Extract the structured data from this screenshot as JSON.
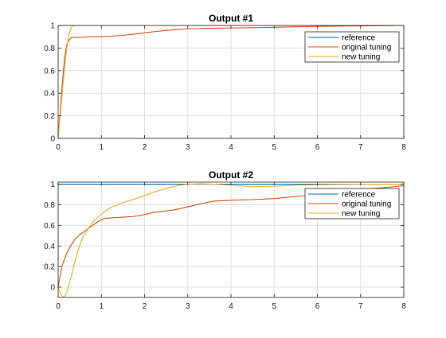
{
  "chart_data": [
    {
      "type": "line",
      "title": "Output #1",
      "xlim": [
        0,
        8
      ],
      "ylim": [
        0,
        1
      ],
      "xticks": [
        "0",
        "1",
        "2",
        "3",
        "4",
        "5",
        "6",
        "7",
        "8"
      ],
      "yticks": [
        "0",
        "0.2",
        "0.4",
        "0.6",
        "0.8",
        "1"
      ],
      "grid": true,
      "legend_position": "top-right",
      "series": [
        {
          "name": "reference",
          "color": "#0072BD",
          "x": [
            0,
            8
          ],
          "y": [
            1,
            1
          ]
        },
        {
          "name": "original tuning",
          "color": "#D95319",
          "x": [
            0,
            0.05,
            0.1,
            0.15,
            0.2,
            0.25,
            0.3,
            0.35,
            0.45,
            0.6,
            0.8,
            1.0,
            1.2,
            1.5,
            1.8,
            2.0,
            2.3,
            2.6,
            3.0,
            3.5,
            4.0,
            4.5,
            5.0,
            5.5,
            6.0,
            6.5,
            7.0,
            7.5,
            8.0
          ],
          "y": [
            0.01,
            0.25,
            0.5,
            0.72,
            0.83,
            0.87,
            0.89,
            0.895,
            0.895,
            0.897,
            0.9,
            0.902,
            0.905,
            0.912,
            0.925,
            0.935,
            0.948,
            0.96,
            0.97,
            0.975,
            0.978,
            0.98,
            0.984,
            0.988,
            0.992,
            0.994,
            0.996,
            0.998,
            1.0
          ]
        },
        {
          "name": "new tuning",
          "color": "#EDB120",
          "x": [
            0,
            0.05,
            0.1,
            0.15,
            0.2,
            0.25,
            0.3,
            0.35,
            0.4,
            0.5,
            0.7,
            1.0,
            8.0
          ],
          "y": [
            0.0,
            0.2,
            0.42,
            0.62,
            0.8,
            0.92,
            0.98,
            1.0,
            1.005,
            1.0,
            1.0,
            1.0,
            1.0
          ]
        }
      ]
    },
    {
      "type": "line",
      "title": "Output #2",
      "xlim": [
        0,
        8
      ],
      "ylim": [
        -0.1,
        1.02
      ],
      "xticks": [
        "0",
        "1",
        "2",
        "3",
        "4",
        "5",
        "6",
        "7",
        "8"
      ],
      "yticks": [
        "0",
        "0.2",
        "0.4",
        "0.6",
        "0.8",
        "1"
      ],
      "grid": true,
      "legend_position": "top-right",
      "series": [
        {
          "name": "reference",
          "color": "#0072BD",
          "x": [
            0,
            8
          ],
          "y": [
            1,
            1
          ]
        },
        {
          "name": "original tuning",
          "color": "#D95319",
          "x": [
            0,
            0.05,
            0.1,
            0.2,
            0.3,
            0.4,
            0.5,
            0.6,
            0.7,
            0.8,
            0.9,
            1.0,
            1.1,
            1.3,
            1.5,
            1.7,
            1.9,
            2.0,
            2.2,
            2.4,
            2.6,
            2.8,
            3.0,
            3.3,
            3.6,
            4.0,
            4.5,
            5.0,
            5.5,
            6.0,
            6.5,
            7.0,
            7.5,
            8.0
          ],
          "y": [
            0.0,
            0.12,
            0.22,
            0.33,
            0.41,
            0.47,
            0.51,
            0.54,
            0.57,
            0.6,
            0.63,
            0.655,
            0.668,
            0.675,
            0.68,
            0.685,
            0.695,
            0.705,
            0.725,
            0.735,
            0.745,
            0.76,
            0.78,
            0.81,
            0.835,
            0.845,
            0.85,
            0.86,
            0.88,
            0.9,
            0.93,
            0.95,
            0.965,
            0.985
          ]
        },
        {
          "name": "new tuning",
          "color": "#EDB120",
          "x": [
            0,
            0.05,
            0.1,
            0.15,
            0.2,
            0.3,
            0.4,
            0.5,
            0.6,
            0.8,
            1.0,
            1.2,
            1.5,
            1.8,
            2.0,
            2.3,
            2.6,
            2.8,
            3.0,
            3.3,
            3.6,
            4.0,
            4.5,
            5.0,
            5.5,
            6.0,
            7.0,
            8.0
          ],
          "y": [
            0.0,
            -0.06,
            -0.095,
            -0.09,
            -0.05,
            0.1,
            0.27,
            0.41,
            0.51,
            0.63,
            0.71,
            0.77,
            0.82,
            0.86,
            0.89,
            0.935,
            0.97,
            0.99,
            1.0,
            1.005,
            1.0,
            0.99,
            0.975,
            0.98,
            0.99,
            0.995,
            1.0,
            1.0
          ]
        }
      ]
    }
  ]
}
